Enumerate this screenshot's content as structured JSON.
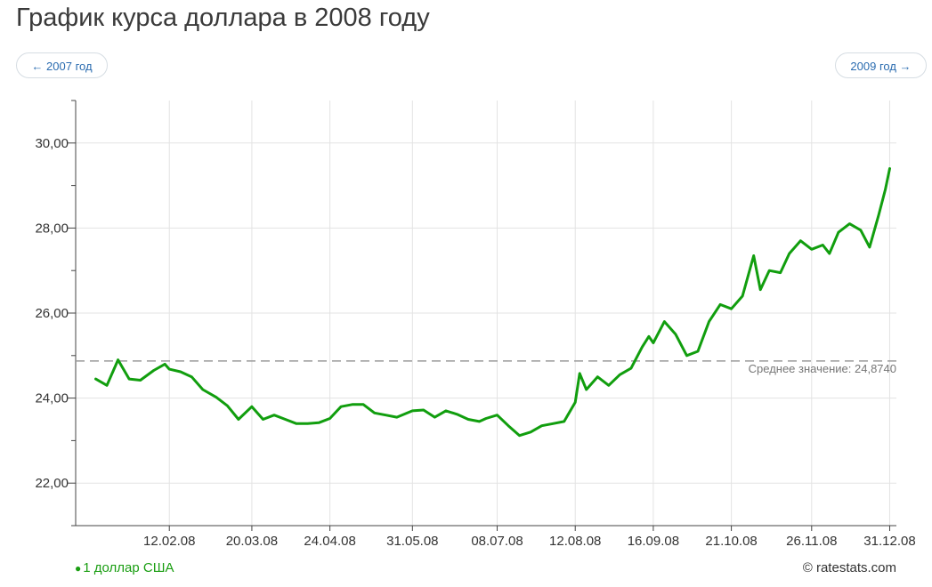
{
  "page": {
    "title": "График курса доллара в 2008 году",
    "prev_label": "← 2007 год",
    "next_label": "2009 год →",
    "credit": "© ratestats.com"
  },
  "colors": {
    "line": "#119e0e",
    "average": "#9a9a9a",
    "grid": "#e3e3e3",
    "axis": "#444444",
    "link": "#2b6cb0"
  },
  "chart_data": {
    "type": "line",
    "title": "График курса доллара в 2008 году",
    "xlabel": "",
    "ylabel": "",
    "x_range": [
      "2008-01-01",
      "2008-12-31"
    ],
    "ylim": [
      21,
      31
    ],
    "y_ticks": [
      22,
      24,
      26,
      28,
      30
    ],
    "y_tick_labels": [
      "22,00",
      "24,00",
      "26,00",
      "28,00",
      "30,00"
    ],
    "x_ticks": [
      "2008-02-12",
      "2008-03-20",
      "2008-04-24",
      "2008-05-31",
      "2008-07-08",
      "2008-08-12",
      "2008-09-16",
      "2008-10-21",
      "2008-11-26",
      "2008-12-31"
    ],
    "x_tick_labels": [
      "12.02.08",
      "20.03.08",
      "24.04.08",
      "31.05.08",
      "08.07.08",
      "12.08.08",
      "16.09.08",
      "21.10.08",
      "26.11.08",
      "31.12.08"
    ],
    "grid": true,
    "legend_position": "bottom-left",
    "average": {
      "label": "Среднее значение: 24,8740",
      "value": 24.874
    },
    "series": [
      {
        "name": "1 доллар США",
        "x": [
          "2008-01-10",
          "2008-01-15",
          "2008-01-20",
          "2008-01-25",
          "2008-01-30",
          "2008-02-05",
          "2008-02-10",
          "2008-02-12",
          "2008-02-17",
          "2008-02-22",
          "2008-02-27",
          "2008-03-04",
          "2008-03-09",
          "2008-03-14",
          "2008-03-20",
          "2008-03-25",
          "2008-03-30",
          "2008-04-04",
          "2008-04-09",
          "2008-04-14",
          "2008-04-19",
          "2008-04-24",
          "2008-04-29",
          "2008-05-04",
          "2008-05-09",
          "2008-05-14",
          "2008-05-19",
          "2008-05-24",
          "2008-05-31",
          "2008-06-05",
          "2008-06-10",
          "2008-06-15",
          "2008-06-20",
          "2008-06-25",
          "2008-06-30",
          "2008-07-03",
          "2008-07-08",
          "2008-07-13",
          "2008-07-18",
          "2008-07-23",
          "2008-07-28",
          "2008-08-02",
          "2008-08-07",
          "2008-08-12",
          "2008-08-14",
          "2008-08-17",
          "2008-08-22",
          "2008-08-27",
          "2008-09-01",
          "2008-09-06",
          "2008-09-11",
          "2008-09-14",
          "2008-09-16",
          "2008-09-21",
          "2008-09-26",
          "2008-10-01",
          "2008-10-06",
          "2008-10-11",
          "2008-10-16",
          "2008-10-21",
          "2008-10-26",
          "2008-10-31",
          "2008-11-03",
          "2008-11-07",
          "2008-11-12",
          "2008-11-16",
          "2008-11-21",
          "2008-11-26",
          "2008-12-01",
          "2008-12-04",
          "2008-12-08",
          "2008-12-13",
          "2008-12-18",
          "2008-12-22",
          "2008-12-26",
          "2008-12-29",
          "2008-12-31"
        ],
        "values": [
          24.45,
          24.3,
          24.9,
          24.45,
          24.42,
          24.65,
          24.8,
          24.68,
          24.62,
          24.5,
          24.2,
          24.02,
          23.82,
          23.5,
          23.8,
          23.5,
          23.6,
          23.5,
          23.4,
          23.4,
          23.42,
          23.52,
          23.8,
          23.85,
          23.85,
          23.65,
          23.6,
          23.55,
          23.7,
          23.72,
          23.55,
          23.7,
          23.62,
          23.5,
          23.45,
          23.52,
          23.6,
          23.35,
          23.12,
          23.2,
          23.35,
          23.4,
          23.45,
          23.9,
          24.58,
          24.2,
          24.5,
          24.3,
          24.55,
          24.7,
          25.2,
          25.45,
          25.3,
          25.8,
          25.5,
          25.0,
          25.1,
          25.8,
          26.2,
          26.1,
          26.4,
          27.35,
          26.55,
          27.0,
          26.95,
          27.4,
          27.7,
          27.5,
          27.6,
          27.4,
          27.9,
          28.1,
          27.95,
          27.55,
          28.3,
          28.9,
          29.4
        ]
      }
    ]
  }
}
